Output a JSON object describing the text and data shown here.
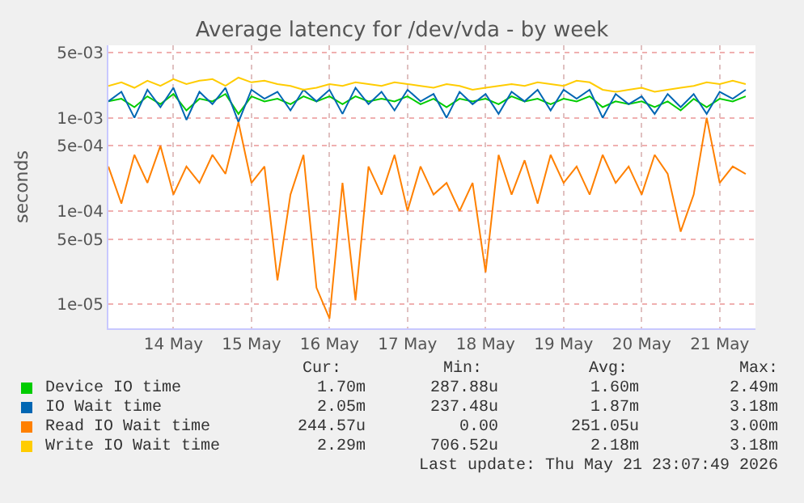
{
  "chart_data": {
    "type": "line",
    "title": "Average latency for /dev/vda - by week",
    "ylabel": "seconds",
    "x": [
      "2026-05-13T16:00",
      "2026-05-13T20:00",
      "2026-05-14T00:00",
      "2026-05-14T04:00",
      "2026-05-14T08:00",
      "2026-05-14T12:00",
      "2026-05-14T16:00",
      "2026-05-14T20:00",
      "2026-05-15T00:00",
      "2026-05-15T04:00",
      "2026-05-15T08:00",
      "2026-05-15T12:00",
      "2026-05-15T16:00",
      "2026-05-15T20:00",
      "2026-05-16T00:00",
      "2026-05-16T04:00",
      "2026-05-16T08:00",
      "2026-05-16T12:00",
      "2026-05-16T16:00",
      "2026-05-16T20:00",
      "2026-05-17T00:00",
      "2026-05-17T04:00",
      "2026-05-17T08:00",
      "2026-05-17T12:00",
      "2026-05-17T16:00",
      "2026-05-17T20:00",
      "2026-05-18T00:00",
      "2026-05-18T04:00",
      "2026-05-18T08:00",
      "2026-05-18T12:00",
      "2026-05-18T16:00",
      "2026-05-18T20:00",
      "2026-05-19T00:00",
      "2026-05-19T04:00",
      "2026-05-19T08:00",
      "2026-05-19T12:00",
      "2026-05-19T16:00",
      "2026-05-19T20:00",
      "2026-05-20T00:00",
      "2026-05-20T04:00",
      "2026-05-20T08:00",
      "2026-05-20T12:00",
      "2026-05-20T16:00",
      "2026-05-20T20:00",
      "2026-05-21T00:00",
      "2026-05-21T04:00",
      "2026-05-21T08:00",
      "2026-05-21T12:00",
      "2026-05-21T16:00",
      "2026-05-21T20:00"
    ],
    "series": [
      {
        "name": "Device IO time",
        "color": "#00cc00",
        "values": [
          0.0015,
          0.0016,
          0.0013,
          0.0017,
          0.0014,
          0.0018,
          0.0012,
          0.0016,
          0.0015,
          0.0018,
          0.0011,
          0.0017,
          0.0015,
          0.0016,
          0.0014,
          0.0017,
          0.0015,
          0.0017,
          0.0014,
          0.0017,
          0.0015,
          0.0016,
          0.0015,
          0.0017,
          0.0014,
          0.0016,
          0.0013,
          0.0016,
          0.0015,
          0.0016,
          0.0014,
          0.0017,
          0.0015,
          0.0016,
          0.0014,
          0.0016,
          0.0015,
          0.0017,
          0.0013,
          0.0015,
          0.0014,
          0.0015,
          0.0013,
          0.0015,
          0.0012,
          0.0016,
          0.0013,
          0.0016,
          0.0015,
          0.0017
        ]
      },
      {
        "name": "IO Wait time",
        "color": "#0066b3",
        "values": [
          0.0015,
          0.0019,
          0.001,
          0.002,
          0.0013,
          0.0021,
          0.00095,
          0.0019,
          0.0014,
          0.0021,
          0.0009,
          0.002,
          0.0016,
          0.0019,
          0.0012,
          0.002,
          0.0015,
          0.002,
          0.0011,
          0.0021,
          0.0014,
          0.0019,
          0.0012,
          0.002,
          0.0015,
          0.0018,
          0.001,
          0.0019,
          0.0014,
          0.0018,
          0.0011,
          0.0019,
          0.0015,
          0.002,
          0.0012,
          0.002,
          0.0016,
          0.002,
          0.001,
          0.0018,
          0.0014,
          0.0017,
          0.0011,
          0.0018,
          0.0013,
          0.0018,
          0.0011,
          0.0019,
          0.0016,
          0.002
        ]
      },
      {
        "name": "Read IO Wait time",
        "color": "#ff8000",
        "values": [
          0.0003,
          0.00012,
          0.0004,
          0.0002,
          0.0005,
          0.00015,
          0.0003,
          0.0002,
          0.0004,
          0.00025,
          0.0009,
          0.0002,
          0.0003,
          1.8e-05,
          0.00015,
          0.0004,
          1.5e-05,
          7e-06,
          0.0002,
          1.1e-05,
          0.0003,
          0.00015,
          0.0004,
          0.0001,
          0.0003,
          0.00015,
          0.0002,
          0.0001,
          0.0002,
          2.2e-05,
          0.0004,
          0.00015,
          0.00035,
          0.00012,
          0.0004,
          0.0002,
          0.0003,
          0.00015,
          0.0004,
          0.0002,
          0.0003,
          0.00015,
          0.0004,
          0.00025,
          6e-05,
          0.00015,
          0.001,
          0.0002,
          0.0003,
          0.00025
        ]
      },
      {
        "name": "Write IO Wait time",
        "color": "#ffcc00",
        "values": [
          0.0022,
          0.0024,
          0.0021,
          0.0025,
          0.0022,
          0.0026,
          0.0023,
          0.0025,
          0.0026,
          0.0022,
          0.0027,
          0.0024,
          0.0025,
          0.0023,
          0.0022,
          0.002,
          0.0021,
          0.0023,
          0.0022,
          0.0024,
          0.0023,
          0.0022,
          0.0024,
          0.0023,
          0.0022,
          0.0021,
          0.0023,
          0.0022,
          0.002,
          0.0021,
          0.0022,
          0.0023,
          0.0022,
          0.0024,
          0.0023,
          0.0022,
          0.0025,
          0.0024,
          0.002,
          0.0019,
          0.002,
          0.0021,
          0.0019,
          0.002,
          0.0021,
          0.0022,
          0.0024,
          0.0023,
          0.0025,
          0.0023
        ]
      }
    ],
    "log": "y",
    "ylim": [
      5.5e-06,
      0.006
    ],
    "yticks": [
      {
        "value": 1e-05,
        "label": "1e-05"
      },
      {
        "value": 5e-05,
        "label": "5e-05"
      },
      {
        "value": 0.0001,
        "label": "1e-04"
      },
      {
        "value": 0.0005,
        "label": "5e-04"
      },
      {
        "value": 0.001,
        "label": "1e-03"
      },
      {
        "value": 0.005,
        "label": "5e-03"
      }
    ],
    "xlim": [
      "2026-05-13T16:00",
      "2026-05-21T23:00"
    ],
    "xticks": [
      {
        "value": "2026-05-14T12:00",
        "label": "14 May"
      },
      {
        "value": "2026-05-15T12:00",
        "label": "15 May"
      },
      {
        "value": "2026-05-16T12:00",
        "label": "16 May"
      },
      {
        "value": "2026-05-17T12:00",
        "label": "17 May"
      },
      {
        "value": "2026-05-18T12:00",
        "label": "18 May"
      },
      {
        "value": "2026-05-19T12:00",
        "label": "19 May"
      },
      {
        "value": "2026-05-20T12:00",
        "label": "20 May"
      },
      {
        "value": "2026-05-21T12:00",
        "label": "21 May"
      }
    ],
    "grid": true,
    "legend": "bottom",
    "marker": "none",
    "line_style": "solid",
    "annotations": [
      "Cur:",
      "Min:",
      "Avg:",
      "Max:",
      "1.70m",
      "287.88u",
      "1.60m",
      "2.49m",
      "2.05m",
      "237.48u",
      "1.87m",
      "3.18m",
      "244.57u",
      "0.00",
      "251.05u",
      "3.00m",
      "2.29m",
      "706.52u",
      "2.18m",
      "3.18m",
      "Last update: Thu May 21 23:07:49 2026"
    ]
  }
}
